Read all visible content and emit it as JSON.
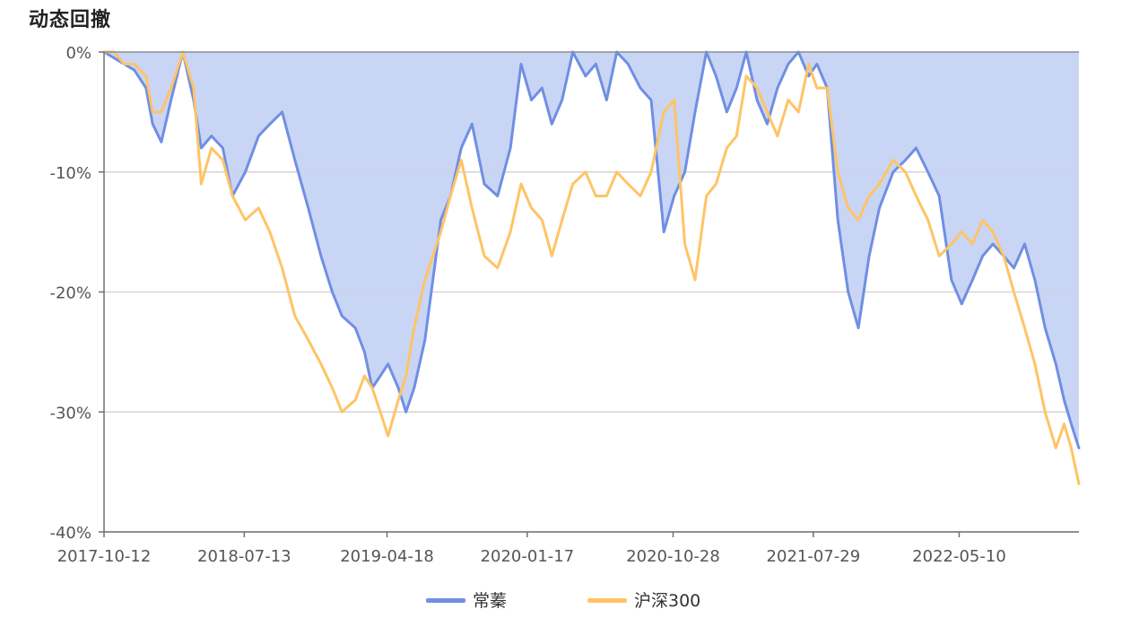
{
  "page": {
    "title": "动态回撤"
  },
  "chart_data": {
    "type": "line",
    "title": "动态回撤",
    "xlabel": "",
    "ylabel": "",
    "x_tick_labels": [
      "2017-10-12",
      "2018-07-13",
      "2019-04-18",
      "2020-01-17",
      "2020-10-28",
      "2021-07-29",
      "2022-05-10"
    ],
    "x_ticks": [
      "2017-10-12",
      "2018-07-13",
      "2019-04-18",
      "2020-01-17",
      "2020-10-28",
      "2021-07-29",
      "2022-05-10"
    ],
    "x_range": [
      "2017-10-12",
      "2022-12-30"
    ],
    "ylim": [
      -40,
      0
    ],
    "y_ticks": [
      0,
      -10,
      -20,
      -30,
      -40
    ],
    "y_tick_labels": [
      "0%",
      "-10%",
      "-20%",
      "-30%",
      "-40%"
    ],
    "grid": true,
    "legend_position": "bottom-center",
    "series": [
      {
        "name": "常蓁",
        "color": "#6f8fe3",
        "fill": "#c9d5f5",
        "area": true,
        "points": [
          [
            "2017-10-12",
            0
          ],
          [
            "2017-11-01",
            -0.5
          ],
          [
            "2017-11-20",
            -1
          ],
          [
            "2017-12-10",
            -1.5
          ],
          [
            "2018-01-02",
            -3
          ],
          [
            "2018-01-15",
            -6
          ],
          [
            "2018-02-01",
            -7.5
          ],
          [
            "2018-02-20",
            -4
          ],
          [
            "2018-03-15",
            0
          ],
          [
            "2018-04-05",
            -4
          ],
          [
            "2018-04-20",
            -8
          ],
          [
            "2018-05-10",
            -7
          ],
          [
            "2018-06-01",
            -8
          ],
          [
            "2018-06-20",
            -12
          ],
          [
            "2018-07-15",
            -10
          ],
          [
            "2018-08-10",
            -7
          ],
          [
            "2018-09-01",
            -6
          ],
          [
            "2018-09-25",
            -5
          ],
          [
            "2018-10-20",
            -9
          ],
          [
            "2018-11-15",
            -13
          ],
          [
            "2018-12-10",
            -17
          ],
          [
            "2019-01-01",
            -20
          ],
          [
            "2019-01-20",
            -22
          ],
          [
            "2019-02-15",
            -23
          ],
          [
            "2019-03-05",
            -25
          ],
          [
            "2019-03-20",
            -28
          ],
          [
            "2019-04-05",
            -27
          ],
          [
            "2019-04-20",
            -26
          ],
          [
            "2019-05-10",
            -28
          ],
          [
            "2019-05-25",
            -30
          ],
          [
            "2019-06-10",
            -28
          ],
          [
            "2019-07-01",
            -24
          ],
          [
            "2019-08-01",
            -14
          ],
          [
            "2019-08-20",
            -12
          ],
          [
            "2019-09-10",
            -8
          ],
          [
            "2019-10-01",
            -6
          ],
          [
            "2019-10-25",
            -11
          ],
          [
            "2019-11-20",
            -12
          ],
          [
            "2019-12-15",
            -8
          ],
          [
            "2020-01-05",
            -1
          ],
          [
            "2020-01-25",
            -4
          ],
          [
            "2020-02-15",
            -3
          ],
          [
            "2020-03-05",
            -6
          ],
          [
            "2020-03-25",
            -4
          ],
          [
            "2020-04-15",
            0
          ],
          [
            "2020-05-10",
            -2
          ],
          [
            "2020-05-30",
            -1
          ],
          [
            "2020-06-20",
            -4
          ],
          [
            "2020-07-10",
            0
          ],
          [
            "2020-08-01",
            -1
          ],
          [
            "2020-08-25",
            -3
          ],
          [
            "2020-09-15",
            -4
          ],
          [
            "2020-10-10",
            -15
          ],
          [
            "2020-10-30",
            -12
          ],
          [
            "2020-11-20",
            -10
          ],
          [
            "2020-12-10",
            -5
          ],
          [
            "2021-01-01",
            0
          ],
          [
            "2021-01-20",
            -2
          ],
          [
            "2021-02-10",
            -5
          ],
          [
            "2021-03-01",
            -3
          ],
          [
            "2021-03-20",
            0
          ],
          [
            "2021-04-10",
            -4
          ],
          [
            "2021-04-30",
            -6
          ],
          [
            "2021-05-20",
            -3
          ],
          [
            "2021-06-10",
            -1
          ],
          [
            "2021-06-30",
            0
          ],
          [
            "2021-07-20",
            -2
          ],
          [
            "2021-08-05",
            -1
          ],
          [
            "2021-08-25",
            -3
          ],
          [
            "2021-09-15",
            -14
          ],
          [
            "2021-10-05",
            -20
          ],
          [
            "2021-10-25",
            -23
          ],
          [
            "2021-11-15",
            -17
          ],
          [
            "2021-12-05",
            -13
          ],
          [
            "2022-01-01",
            -10
          ],
          [
            "2022-01-25",
            -9
          ],
          [
            "2022-02-15",
            -8
          ],
          [
            "2022-03-10",
            -10
          ],
          [
            "2022-04-01",
            -12
          ],
          [
            "2022-04-25",
            -19
          ],
          [
            "2022-05-15",
            -21
          ],
          [
            "2022-06-05",
            -19
          ],
          [
            "2022-06-25",
            -17
          ],
          [
            "2022-07-15",
            -16
          ],
          [
            "2022-08-05",
            -17
          ],
          [
            "2022-08-25",
            -18
          ],
          [
            "2022-09-15",
            -16
          ],
          [
            "2022-10-05",
            -19
          ],
          [
            "2022-10-25",
            -23
          ],
          [
            "2022-11-15",
            -26
          ],
          [
            "2022-12-01",
            -29
          ],
          [
            "2022-12-15",
            -31
          ],
          [
            "2022-12-30",
            -33
          ]
        ]
      },
      {
        "name": "沪深300",
        "color": "#ffc466",
        "area": false,
        "points": [
          [
            "2017-10-12",
            0
          ],
          [
            "2017-11-01",
            0
          ],
          [
            "2017-11-20",
            -1
          ],
          [
            "2017-12-10",
            -1
          ],
          [
            "2018-01-02",
            -2
          ],
          [
            "2018-01-15",
            -5
          ],
          [
            "2018-02-01",
            -5
          ],
          [
            "2018-02-20",
            -3
          ],
          [
            "2018-03-15",
            0
          ],
          [
            "2018-04-05",
            -3
          ],
          [
            "2018-04-20",
            -11
          ],
          [
            "2018-05-10",
            -8
          ],
          [
            "2018-06-01",
            -9
          ],
          [
            "2018-06-20",
            -12
          ],
          [
            "2018-07-15",
            -14
          ],
          [
            "2018-08-10",
            -13
          ],
          [
            "2018-09-01",
            -15
          ],
          [
            "2018-09-25",
            -18
          ],
          [
            "2018-10-20",
            -22
          ],
          [
            "2018-11-15",
            -24
          ],
          [
            "2018-12-10",
            -26
          ],
          [
            "2019-01-01",
            -28
          ],
          [
            "2019-01-20",
            -30
          ],
          [
            "2019-02-15",
            -29
          ],
          [
            "2019-03-05",
            -27
          ],
          [
            "2019-03-20",
            -28
          ],
          [
            "2019-04-05",
            -30
          ],
          [
            "2019-04-20",
            -32
          ],
          [
            "2019-05-10",
            -29
          ],
          [
            "2019-05-25",
            -27
          ],
          [
            "2019-06-10",
            -23
          ],
          [
            "2019-07-01",
            -19
          ],
          [
            "2019-08-01",
            -15
          ],
          [
            "2019-08-20",
            -12
          ],
          [
            "2019-09-10",
            -9
          ],
          [
            "2019-10-01",
            -13
          ],
          [
            "2019-10-25",
            -17
          ],
          [
            "2019-11-20",
            -18
          ],
          [
            "2019-12-15",
            -15
          ],
          [
            "2020-01-05",
            -11
          ],
          [
            "2020-01-25",
            -13
          ],
          [
            "2020-02-15",
            -14
          ],
          [
            "2020-03-05",
            -17
          ],
          [
            "2020-03-25",
            -14
          ],
          [
            "2020-04-15",
            -11
          ],
          [
            "2020-05-10",
            -10
          ],
          [
            "2020-05-30",
            -12
          ],
          [
            "2020-06-20",
            -12
          ],
          [
            "2020-07-10",
            -10
          ],
          [
            "2020-08-01",
            -11
          ],
          [
            "2020-08-25",
            -12
          ],
          [
            "2020-09-15",
            -10
          ],
          [
            "2020-10-10",
            -5
          ],
          [
            "2020-10-30",
            -4
          ],
          [
            "2020-11-20",
            -16
          ],
          [
            "2020-12-10",
            -19
          ],
          [
            "2021-01-01",
            -12
          ],
          [
            "2021-01-20",
            -11
          ],
          [
            "2021-02-10",
            -8
          ],
          [
            "2021-03-01",
            -7
          ],
          [
            "2021-03-20",
            -2
          ],
          [
            "2021-04-10",
            -3
          ],
          [
            "2021-04-30",
            -5
          ],
          [
            "2021-05-20",
            -7
          ],
          [
            "2021-06-10",
            -4
          ],
          [
            "2021-06-30",
            -5
          ],
          [
            "2021-07-20",
            -1
          ],
          [
            "2021-08-05",
            -3
          ],
          [
            "2021-08-25",
            -3
          ],
          [
            "2021-09-15",
            -10
          ],
          [
            "2021-10-05",
            -13
          ],
          [
            "2021-10-25",
            -14
          ],
          [
            "2021-11-15",
            -12
          ],
          [
            "2021-12-05",
            -11
          ],
          [
            "2022-01-01",
            -9
          ],
          [
            "2022-01-25",
            -10
          ],
          [
            "2022-02-15",
            -12
          ],
          [
            "2022-03-10",
            -14
          ],
          [
            "2022-04-01",
            -17
          ],
          [
            "2022-04-25",
            -16
          ],
          [
            "2022-05-15",
            -15
          ],
          [
            "2022-06-05",
            -16
          ],
          [
            "2022-06-25",
            -14
          ],
          [
            "2022-07-15",
            -15
          ],
          [
            "2022-08-05",
            -17
          ],
          [
            "2022-08-25",
            -20
          ],
          [
            "2022-09-15",
            -23
          ],
          [
            "2022-10-05",
            -26
          ],
          [
            "2022-10-25",
            -30
          ],
          [
            "2022-11-15",
            -33
          ],
          [
            "2022-12-01",
            -31
          ],
          [
            "2022-12-15",
            -33
          ],
          [
            "2022-12-30",
            -36
          ]
        ]
      }
    ]
  }
}
